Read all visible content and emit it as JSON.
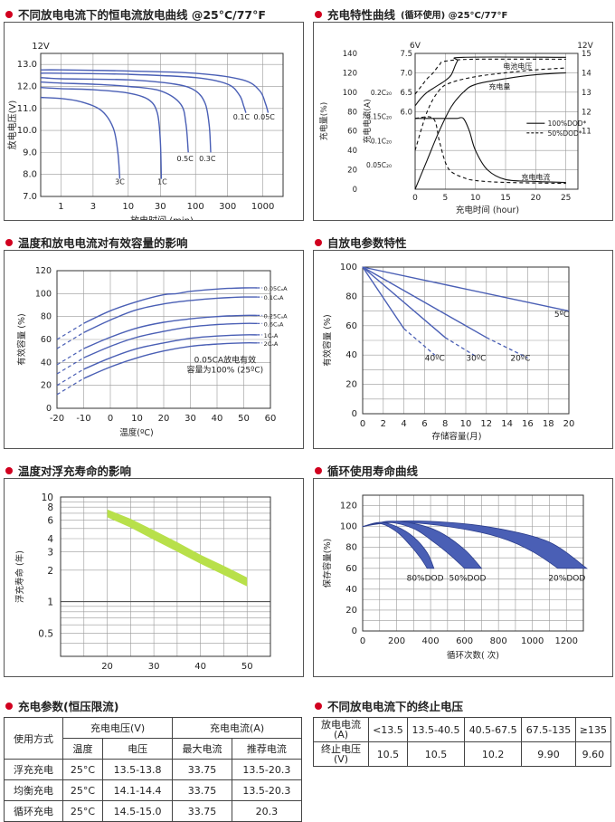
{
  "sections": {
    "s1": "不同放电电流下的恒电流放电曲线 @25°C/77°F",
    "s2_main": "充电特性曲线",
    "s2_sub": "(循环使用) @25°C/77°F",
    "s3": "温度和放电电流对有效容量的影响",
    "s4": "自放电参数特性",
    "s5": "温度对浮充寿命的影响",
    "s6": "循环使用寿命曲线",
    "s7": "充电参数(恒压限流)",
    "s8": "不同放电电流下的终止电压"
  },
  "colors": {
    "accent": "#d1001f",
    "curve": "#4a5fb5",
    "green": "#b8e04a"
  },
  "chart_data": [
    {
      "id": "discharge",
      "type": "line",
      "title": "不同放电电流下的恒电流放电曲线 @25°C/77°F",
      "xlabel": "放电时间 (min)",
      "ylabel": "放电电压(V)",
      "xscale": "log",
      "xlim": [
        0.5,
        2000
      ],
      "ylim": [
        7,
        13.5
      ],
      "xticks": [
        "1",
        "3",
        "10",
        "30",
        "100",
        "300",
        "1000"
      ],
      "xtick_values": [
        1,
        3,
        10,
        30,
        100,
        300,
        1000
      ],
      "yticks": [
        "7.0",
        "8.0",
        "9.0",
        "10.0",
        "11.0",
        "12.0",
        "13.0"
      ],
      "ytick_values": [
        7,
        8,
        9,
        10,
        11,
        12,
        13
      ],
      "corner_label": "12V",
      "series": [
        {
          "name": "3C",
          "label_at": [
            7.5,
            7.55
          ],
          "x": [
            0.5,
            1,
            2,
            4,
            6,
            7,
            7.5
          ],
          "y": [
            11.5,
            11.45,
            11.3,
            10.9,
            10.1,
            9.0,
            7.8
          ]
        },
        {
          "name": "1C",
          "label_at": [
            32,
            7.55
          ],
          "x": [
            0.5,
            1,
            3,
            10,
            20,
            27,
            30,
            31
          ],
          "y": [
            11.95,
            11.9,
            11.85,
            11.7,
            11.4,
            10.8,
            9.5,
            7.8
          ]
        },
        {
          "name": "0.5C",
          "label_at": [
            70,
            8.6
          ],
          "x": [
            0.5,
            1,
            3,
            10,
            30,
            60,
            72,
            78
          ],
          "y": [
            12.2,
            12.15,
            12.1,
            12.0,
            11.8,
            11.2,
            10.3,
            9.0
          ]
        },
        {
          "name": "0.3C",
          "label_at": [
            150,
            8.6
          ],
          "x": [
            0.5,
            1,
            10,
            50,
            100,
            140,
            160,
            168
          ],
          "y": [
            12.4,
            12.35,
            12.3,
            12.1,
            11.8,
            11.2,
            10.2,
            9.0
          ]
        },
        {
          "name": "0.1C",
          "label_at": [
            480,
            10.5
          ],
          "x": [
            0.5,
            1,
            10,
            100,
            300,
            450,
            520,
            560
          ],
          "y": [
            12.6,
            12.6,
            12.55,
            12.4,
            12.1,
            11.6,
            11.1,
            10.8
          ]
        },
        {
          "name": "0.05C",
          "label_at": [
            1050,
            10.5
          ],
          "x": [
            0.5,
            1,
            10,
            100,
            500,
            900,
            1100,
            1200
          ],
          "y": [
            12.75,
            12.75,
            12.7,
            12.6,
            12.3,
            11.8,
            11.2,
            10.8
          ]
        }
      ]
    },
    {
      "id": "charge",
      "type": "line",
      "title": "充电特性曲线(循环使用) @25°C/77°F",
      "xlabel": "充电时间 (hour)",
      "xticks": [
        "0",
        "5",
        "10",
        "15",
        "20",
        "25"
      ],
      "xtick_values": [
        0,
        5,
        10,
        15,
        20,
        25
      ],
      "ylabel_capacity": "充电量(%)",
      "capacity_ticks": [
        "0",
        "20",
        "40",
        "60",
        "80",
        "100",
        "120",
        "140"
      ],
      "ylabel_current": "充电电流(A)",
      "current_ticks": [
        "0.05C₂₀",
        "0.1C₂₀",
        "0.15C₂₀",
        "0.2C₂₀"
      ],
      "voltage_6v_label": "6V",
      "voltage_6v_ticks": [
        "6.0",
        "6.5",
        "7.0",
        "7.5"
      ],
      "voltage_12v_label": "12V",
      "voltage_12v_ticks": [
        "11",
        "12",
        "13",
        "14",
        "15"
      ],
      "legend": [
        "100%DOD*",
        "50%DOD*"
      ],
      "curve_labels": {
        "voltage": "电池电压",
        "capacity": "充电量",
        "current": "充电电流"
      },
      "series": [
        {
          "name": "电池电压 100%DOD",
          "style": "solid",
          "x": [
            0,
            1,
            2,
            3,
            4,
            5,
            6,
            7,
            8,
            25
          ],
          "y": [
            86,
            94,
            100,
            104,
            108,
            112,
            118,
            132,
            136,
            136
          ]
        },
        {
          "name": "电池电压 50%DOD",
          "style": "dashed",
          "x": [
            0,
            1,
            2,
            3,
            4,
            5,
            10,
            25
          ],
          "y": [
            98,
            106,
            114,
            120,
            128,
            132,
            134,
            134
          ]
        },
        {
          "name": "充电量 100%DOD",
          "style": "solid",
          "x": [
            0,
            2,
            4,
            6,
            8,
            10,
            15,
            20,
            25
          ],
          "y": [
            0,
            30,
            60,
            85,
            100,
            108,
            114,
            118,
            120
          ]
        },
        {
          "name": "充电量 50%DOD",
          "style": "dashed",
          "x": [
            0,
            2,
            4,
            6,
            10,
            15,
            20,
            25
          ],
          "y": [
            40,
            80,
            102,
            110,
            116,
            120,
            123,
            125
          ]
        },
        {
          "name": "充电电流 100%DOD",
          "style": "solid",
          "x": [
            0,
            6,
            7,
            8,
            9,
            10,
            12,
            15,
            20,
            25
          ],
          "y": [
            73,
            73,
            73,
            73,
            60,
            40,
            20,
            10,
            8,
            7
          ]
        },
        {
          "name": "充电电流 50%DOD",
          "style": "dashed",
          "x": [
            0,
            3,
            4,
            5,
            6,
            8,
            10,
            15,
            25
          ],
          "y": [
            73,
            73,
            50,
            28,
            18,
            12,
            9,
            7,
            6
          ]
        }
      ]
    },
    {
      "id": "temperature_capacity",
      "type": "line",
      "title": "温度和放电电流对有效容量的影响",
      "xlabel": "温度(ºC)",
      "ylabel": "有效容量 (%)",
      "xlim": [
        -20,
        60
      ],
      "ylim": [
        0,
        120
      ],
      "xticks": [
        "-20",
        "-10",
        "0",
        "10",
        "20",
        "30",
        "40",
        "50",
        "60"
      ],
      "xtick_values": [
        -20,
        -10,
        0,
        10,
        20,
        30,
        40,
        50,
        60
      ],
      "yticks": [
        "0",
        "20",
        "40",
        "60",
        "80",
        "100",
        "120"
      ],
      "ytick_values": [
        0,
        20,
        40,
        60,
        80,
        100,
        120
      ],
      "note_line1": "0.05CA放电有效",
      "note_line2": "容量为100% (25ºC)",
      "series": [
        {
          "name": "0.05CₐA",
          "x": [
            -20,
            -10,
            0,
            10,
            20,
            25,
            30,
            40,
            50,
            55
          ],
          "y": [
            60,
            74,
            85,
            93,
            99,
            100,
            102,
            104,
            105,
            105
          ]
        },
        {
          "name": "0.1CₐA",
          "x": [
            -20,
            -10,
            0,
            10,
            20,
            30,
            40,
            50,
            55
          ],
          "y": [
            52,
            66,
            77,
            86,
            91,
            94,
            96,
            97,
            97
          ]
        },
        {
          "name": "0.25CₐA",
          "x": [
            -20,
            -10,
            0,
            10,
            20,
            30,
            40,
            50,
            55
          ],
          "y": [
            38,
            52,
            62,
            70,
            75,
            78,
            80,
            81,
            81
          ]
        },
        {
          "name": "0.6CₐA",
          "x": [
            -20,
            -10,
            0,
            10,
            20,
            30,
            40,
            50,
            55
          ],
          "y": [
            30,
            44,
            54,
            62,
            67,
            71,
            73,
            74,
            74
          ]
        },
        {
          "name": "1CₐA",
          "x": [
            -20,
            -10,
            0,
            10,
            20,
            30,
            40,
            50,
            55
          ],
          "y": [
            20,
            34,
            44,
            52,
            57,
            61,
            63,
            64,
            64
          ]
        },
        {
          "name": "2CₐA",
          "x": [
            -20,
            -10,
            0,
            10,
            20,
            30,
            40,
            50,
            55
          ],
          "y": [
            12,
            26,
            36,
            44,
            50,
            54,
            56,
            57,
            57
          ]
        }
      ]
    },
    {
      "id": "self_discharge",
      "type": "line",
      "title": "自放电参数特性",
      "xlabel": "存储容量(月)",
      "ylabel": "有效容量 (%)",
      "xlim": [
        0,
        20
      ],
      "ylim": [
        0,
        100
      ],
      "xticks": [
        "0",
        "2",
        "4",
        "6",
        "8",
        "10",
        "12",
        "14",
        "16",
        "18",
        "20"
      ],
      "xtick_values": [
        0,
        2,
        4,
        6,
        8,
        10,
        12,
        14,
        16,
        18,
        20
      ],
      "yticks": [
        "0",
        "20",
        "40",
        "60",
        "80",
        "100"
      ],
      "ytick_values": [
        0,
        20,
        40,
        60,
        80,
        100
      ],
      "series": [
        {
          "name": "5ºC",
          "label_at": [
            19.3,
            66
          ],
          "x": [
            0,
            20
          ],
          "y": [
            100,
            70
          ]
        },
        {
          "name": "20ºC",
          "label_at": [
            15.3,
            36
          ],
          "x": [
            0,
            12,
            16
          ],
          "y": [
            100,
            52,
            38
          ]
        },
        {
          "name": "30ºC",
          "label_at": [
            11,
            36
          ],
          "x": [
            0,
            8,
            11
          ],
          "y": [
            100,
            52,
            39
          ]
        },
        {
          "name": "40ºC",
          "label_at": [
            7,
            36
          ],
          "x": [
            0,
            4,
            7
          ],
          "y": [
            100,
            58,
            40
          ]
        }
      ]
    },
    {
      "id": "float_life",
      "type": "band",
      "title": "温度对浮充寿命的影响",
      "xlabel": "温度(ºC)",
      "ylabel": "浮充寿命 (年)",
      "xlim": [
        10,
        55
      ],
      "yscale": "log",
      "ylim": [
        0.3,
        10
      ],
      "xticks": [
        "20",
        "30",
        "40",
        "50"
      ],
      "xtick_values": [
        20,
        30,
        40,
        50
      ],
      "yticks": [
        "0.5",
        "1",
        "2",
        "3",
        "4",
        "6",
        "8",
        "10"
      ],
      "ytick_values": [
        0.5,
        1,
        2,
        3,
        4,
        6,
        8,
        10
      ],
      "series": [
        {
          "name": "upper",
          "x": [
            20,
            25,
            30,
            35,
            40,
            45,
            50
          ],
          "y": [
            7.6,
            6.2,
            4.8,
            3.7,
            2.8,
            2.2,
            1.7
          ]
        },
        {
          "name": "lower",
          "x": [
            20,
            25,
            30,
            35,
            40,
            45,
            50
          ],
          "y": [
            6.4,
            5.1,
            3.9,
            3.0,
            2.3,
            1.8,
            1.4
          ]
        }
      ]
    },
    {
      "id": "cycle_life",
      "type": "area",
      "title": "循环使用寿命曲线",
      "xlabel": "循环次数( 次)",
      "ylabel": "保存容量(%)",
      "xlim": [
        0,
        1300
      ],
      "ylim": [
        0,
        130
      ],
      "xticks": [
        "0",
        "200",
        "400",
        "600",
        "800",
        "1000",
        "1200"
      ],
      "xtick_values": [
        0,
        200,
        400,
        600,
        800,
        1000,
        1200
      ],
      "yticks": [
        "0",
        "20",
        "40",
        "60",
        "80",
        "100",
        "120"
      ],
      "ytick_values": [
        0,
        20,
        40,
        60,
        80,
        100,
        120
      ],
      "series": [
        {
          "name": "80%DOD",
          "upper_x": [
            0,
            100,
            200,
            300,
            380,
            420
          ],
          "upper_y": [
            100,
            104,
            100,
            90,
            75,
            60
          ],
          "lower_x": [
            0,
            100,
            200,
            280,
            340,
            380
          ],
          "lower_y": [
            100,
            103,
            95,
            82,
            70,
            60
          ]
        },
        {
          "name": "50%DOD",
          "upper_x": [
            0,
            150,
            300,
            450,
            600,
            700
          ],
          "upper_y": [
            100,
            105,
            103,
            95,
            78,
            60
          ],
          "lower_x": [
            0,
            150,
            300,
            420,
            520,
            600
          ],
          "lower_y": [
            100,
            104,
            98,
            85,
            72,
            60
          ]
        },
        {
          "name": "20%DOD",
          "upper_x": [
            0,
            200,
            500,
            800,
            1100,
            1320
          ],
          "upper_y": [
            100,
            105,
            104,
            98,
            85,
            60
          ],
          "lower_x": [
            0,
            200,
            500,
            800,
            1000,
            1150
          ],
          "lower_y": [
            100,
            104,
            100,
            90,
            76,
            60
          ]
        }
      ]
    }
  ],
  "charge_table": {
    "header_mode": "使用方式",
    "header_voltage": "充电电压(V)",
    "header_current": "充电电流(A)",
    "sub_temp": "温度",
    "sub_volt": "电压",
    "sub_max": "最大电流",
    "sub_rec": "推荐电流",
    "rows": [
      [
        "浮充充电",
        "25°C",
        "13.5-13.8",
        "33.75",
        "13.5-20.3"
      ],
      [
        "均衡充电",
        "25°C",
        "14.1-14.4",
        "33.75",
        "13.5-20.3"
      ],
      [
        "循环充电",
        "25°C",
        "14.5-15.0",
        "33.75",
        "20.3"
      ]
    ]
  },
  "cutoff_table": {
    "row1_label": "放电电流\n(A)",
    "row1": [
      "<13.5",
      "13.5-40.5",
      "40.5-67.5",
      "67.5-135",
      "≥135"
    ],
    "row2_label": "终止电压\n(V)",
    "row2": [
      "10.5",
      "10.5",
      "10.2",
      "9.90",
      "9.60"
    ]
  }
}
